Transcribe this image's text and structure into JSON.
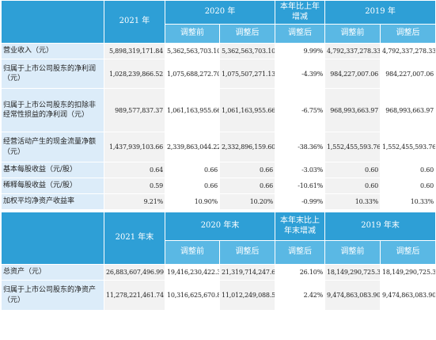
{
  "section1": {
    "header": {
      "col_2021": "2021 年",
      "col_2020": "2020 年",
      "col_change": "本年比上年增减",
      "col_2019": "2019 年",
      "sub_before": "调整前",
      "sub_after": "调整后",
      "sub_change_after": "调整后"
    },
    "rows": [
      {
        "label": "营业收入（元）",
        "v2021": "5,898,319,171.84",
        "v2020_before": "5,362,563,703.10",
        "v2020_after": "5,362,563,703.10",
        "change": "9.99%",
        "v2019_before": "4,792,337,278.33",
        "v2019_after": "4,792,337,278.33"
      },
      {
        "label": "归属于上市公司股东的净利润（元）",
        "v2021": "1,028,239,866.52",
        "v2020_before": "1,075,688,272.70",
        "v2020_after": "1,075,507,271.13",
        "change": "-4.39%",
        "v2019_before": "984,227,007.06",
        "v2019_after": "984,227,007.06"
      },
      {
        "label": "归属于上市公司股东的扣除非经常性损益的净利润（元）",
        "v2021": "989,577,837.37",
        "v2020_before": "1,061,163,955.66",
        "v2020_after": "1,061,163,955.66",
        "change": "-6.75%",
        "v2019_before": "968,993,663.97",
        "v2019_after": "968,993,663.97"
      },
      {
        "label": "经营活动产生的现金流量净额（元）",
        "v2021": "1,437,939,103.66",
        "v2020_before": "2,339,863,044.22",
        "v2020_after": "2,332,896,159.60",
        "change": "-38.36%",
        "v2019_before": "1,552,455,593.76",
        "v2019_after": "1,552,455,593.76"
      },
      {
        "label": "基本每股收益（元/股）",
        "v2021": "0.64",
        "v2020_before": "0.66",
        "v2020_after": "0.66",
        "change": "-3.03%",
        "v2019_before": "0.60",
        "v2019_after": "0.60"
      },
      {
        "label": "稀释每股收益（元/股）",
        "v2021": "0.59",
        "v2020_before": "0.66",
        "v2020_after": "0.66",
        "change": "-10.61%",
        "v2019_before": "0.60",
        "v2019_after": "0.60"
      },
      {
        "label": "加权平均净资产收益率",
        "v2021": "9.21%",
        "v2020_before": "10.90%",
        "v2020_after": "10.20%",
        "change": "-0.99%",
        "v2019_before": "10.33%",
        "v2019_after": "10.33%"
      }
    ]
  },
  "section2": {
    "header": {
      "col_2021": "2021 年末",
      "col_2020": "2020 年末",
      "col_change": "本年末比上年末增减",
      "col_2019": "2019 年末",
      "sub_before": "调整前",
      "sub_after": "调整后",
      "sub_change_after": "调整后"
    },
    "rows": [
      {
        "label": "总资产（元）",
        "v2021": "26,883,607,496.99",
        "v2020_before": "19,416,230,422.33",
        "v2020_after": "21,319,714,247.63",
        "change": "26.10%",
        "v2019_before": "18,149,290,725.33",
        "v2019_after": "18,149,290,725.33"
      },
      {
        "label": "归属于上市公司股东的净资产（元）",
        "v2021": "11,278,221,461.74",
        "v2020_before": "10,316,625,670.85",
        "v2020_after": "11,012,249,088.59",
        "change": "2.42%",
        "v2019_before": "9,474,863,083.90",
        "v2019_after": "9,474,863,083.90"
      }
    ]
  }
}
